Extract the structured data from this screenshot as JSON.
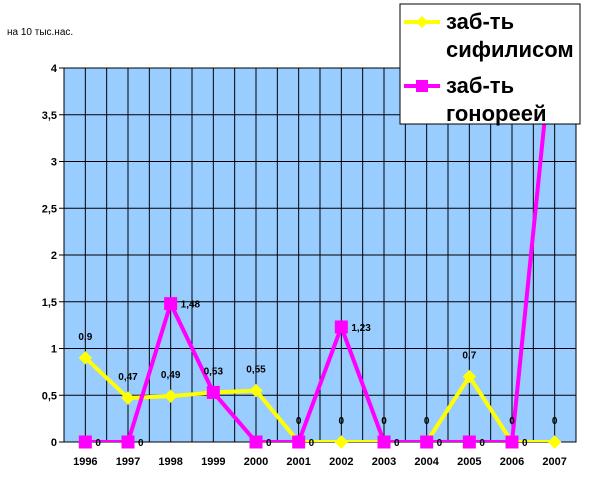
{
  "chart_data": {
    "type": "line",
    "ylabel": "на 10 тыс.нас.",
    "categories": [
      "1996",
      "1997",
      "1998",
      "1999",
      "2000",
      "2001",
      "2002",
      "2003",
      "2004",
      "2005",
      "2006",
      "2007"
    ],
    "ylim": [
      0,
      4
    ],
    "yticks": [
      0,
      0.5,
      1,
      1.5,
      2,
      2.5,
      3,
      3.5,
      4
    ],
    "ytick_labels": [
      "0",
      "0,5",
      "1",
      "1,5",
      "2",
      "2,5",
      "3",
      "3,5",
      "4"
    ],
    "grid": true,
    "legend_position": "top-right",
    "colors": {
      "plot_bg": "#99ccff",
      "grid": "#000000"
    },
    "series": [
      {
        "name": "заб-ть сифилисом",
        "name_lines": [
          "заб-ть",
          "сифилисом"
        ],
        "color": "#ffff00",
        "marker": "diamond",
        "values": [
          0.9,
          0.47,
          0.49,
          0.53,
          0.55,
          0,
          0,
          0,
          0,
          0.7,
          0,
          0
        ],
        "labels": [
          "0,9",
          "0,47",
          "0,49",
          "0,53",
          "0,55",
          "0",
          "0",
          "0",
          "0",
          "0,7",
          "0",
          "0"
        ]
      },
      {
        "name": "заб-ть гонореей",
        "name_lines": [
          "заб-ть",
          "гонореей"
        ],
        "color": "#ff00ff",
        "marker": "square",
        "values": [
          0,
          0,
          1.48,
          0.53,
          0,
          0,
          1.23,
          0,
          0,
          0,
          0,
          4.5
        ],
        "labels": [
          "0",
          "0",
          "1,48",
          "",
          "0",
          "0",
          "1,23",
          "0",
          "0",
          "0",
          "0",
          ""
        ]
      }
    ]
  }
}
